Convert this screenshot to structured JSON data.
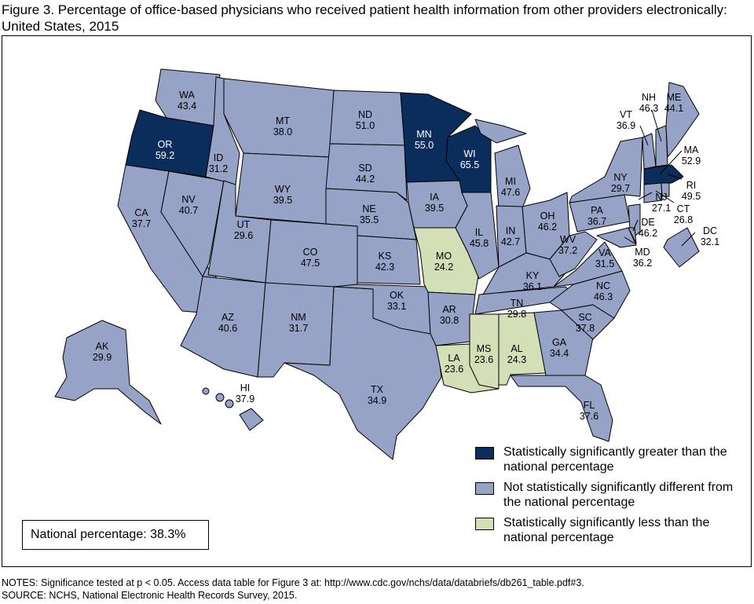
{
  "title": "Figure 3. Percentage of office-based physicians who received patient health information from other providers electronically: United States, 2015",
  "colors": {
    "greater": "#0b2d5c",
    "not_different": "#96a2c6",
    "less": "#d3dfb7"
  },
  "legend": [
    {
      "key": "greater",
      "label": "Statistically significantly greater than the national percentage"
    },
    {
      "key": "not_different",
      "label": "Not statistically significantly different from the national percentage"
    },
    {
      "key": "less",
      "label": "Statistically significantly less than the national percentage"
    }
  ],
  "national": "National percentage: 38.3%",
  "notes": [
    "NOTES: Significance tested at p < 0.05. Access data table for Figure 3 at: http://www.cdc.gov/nchs/data/databriefs/db261_table.pdf#3.",
    "SOURCE: NCHS, National Electronic Health Records Survey, 2015."
  ],
  "states": [
    {
      "code": "WA",
      "value": "43.4",
      "cat": "not_different"
    },
    {
      "code": "OR",
      "value": "59.2",
      "cat": "greater"
    },
    {
      "code": "CA",
      "value": "37.7",
      "cat": "not_different"
    },
    {
      "code": "NV",
      "value": "40.7",
      "cat": "not_different"
    },
    {
      "code": "ID",
      "value": "31.2",
      "cat": "not_different"
    },
    {
      "code": "MT",
      "value": "38.0",
      "cat": "not_different"
    },
    {
      "code": "WY",
      "value": "39.5",
      "cat": "not_different"
    },
    {
      "code": "UT",
      "value": "29.6",
      "cat": "not_different"
    },
    {
      "code": "CO",
      "value": "47.5",
      "cat": "not_different"
    },
    {
      "code": "AZ",
      "value": "40.6",
      "cat": "not_different"
    },
    {
      "code": "NM",
      "value": "31.7",
      "cat": "not_different"
    },
    {
      "code": "TX",
      "value": "34.9",
      "cat": "not_different"
    },
    {
      "code": "ND",
      "value": "51.0",
      "cat": "not_different"
    },
    {
      "code": "SD",
      "value": "44.2",
      "cat": "not_different"
    },
    {
      "code": "NE",
      "value": "35.5",
      "cat": "not_different"
    },
    {
      "code": "KS",
      "value": "42.3",
      "cat": "not_different"
    },
    {
      "code": "OK",
      "value": "33.1",
      "cat": "not_different"
    },
    {
      "code": "MN",
      "value": "55.0",
      "cat": "greater"
    },
    {
      "code": "IA",
      "value": "39.5",
      "cat": "not_different"
    },
    {
      "code": "MO",
      "value": "24.2",
      "cat": "less"
    },
    {
      "code": "AR",
      "value": "30.8",
      "cat": "not_different"
    },
    {
      "code": "LA",
      "value": "23.6",
      "cat": "less"
    },
    {
      "code": "WI",
      "value": "65.5",
      "cat": "greater"
    },
    {
      "code": "IL",
      "value": "45.8",
      "cat": "not_different"
    },
    {
      "code": "MI",
      "value": "47.6",
      "cat": "not_different"
    },
    {
      "code": "IN",
      "value": "42.7",
      "cat": "not_different"
    },
    {
      "code": "OH",
      "value": "46.2",
      "cat": "not_different"
    },
    {
      "code": "KY",
      "value": "36.1",
      "cat": "not_different"
    },
    {
      "code": "TN",
      "value": "29.8",
      "cat": "not_different"
    },
    {
      "code": "MS",
      "value": "23.6",
      "cat": "less"
    },
    {
      "code": "AL",
      "value": "24.3",
      "cat": "less"
    },
    {
      "code": "GA",
      "value": "34.4",
      "cat": "not_different"
    },
    {
      "code": "FL",
      "value": "37.6",
      "cat": "not_different"
    },
    {
      "code": "SC",
      "value": "37.8",
      "cat": "not_different"
    },
    {
      "code": "NC",
      "value": "46.3",
      "cat": "not_different"
    },
    {
      "code": "VA",
      "value": "31.5",
      "cat": "not_different"
    },
    {
      "code": "WV",
      "value": "37.2",
      "cat": "not_different"
    },
    {
      "code": "PA",
      "value": "36.7",
      "cat": "not_different"
    },
    {
      "code": "NY",
      "value": "29.7",
      "cat": "not_different"
    },
    {
      "code": "VT",
      "value": "36.9",
      "cat": "not_different"
    },
    {
      "code": "NH",
      "value": "46.3",
      "cat": "not_different"
    },
    {
      "code": "ME",
      "value": "44.1",
      "cat": "not_different"
    },
    {
      "code": "MA",
      "value": "52.9",
      "cat": "greater"
    },
    {
      "code": "RI",
      "value": "49.5",
      "cat": "not_different"
    },
    {
      "code": "CT",
      "value": "26.8",
      "cat": "not_different"
    },
    {
      "code": "NJ",
      "value": "27.1",
      "cat": "not_different"
    },
    {
      "code": "DE",
      "value": "46.2",
      "cat": "not_different"
    },
    {
      "code": "MD",
      "value": "36.2",
      "cat": "not_different"
    },
    {
      "code": "DC",
      "value": "32.1",
      "cat": "not_different"
    },
    {
      "code": "AK",
      "value": "29.9",
      "cat": "not_different"
    },
    {
      "code": "HI",
      "value": "37.9",
      "cat": "not_different"
    }
  ]
}
